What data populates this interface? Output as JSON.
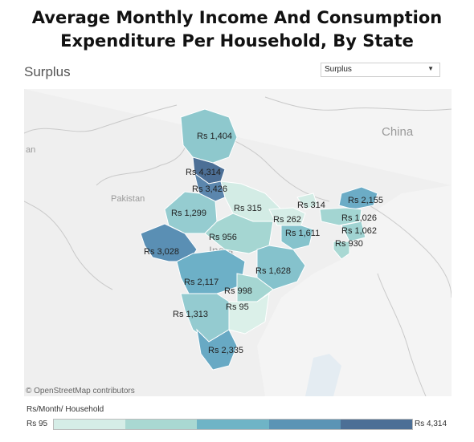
{
  "title_line1": "Average Monthly Income And Consumption",
  "title_line2": "Expenditure Per Household, By State",
  "subtitle": "Surplus",
  "dropdown": {
    "selected": "Surplus",
    "icon": "chevron-down-icon"
  },
  "map": {
    "country_labels": {
      "china": "China",
      "pakistan": "Pakistan",
      "india": "India",
      "cut_off": "an"
    },
    "attribution": "© OpenStreetMap contributors"
  },
  "legend": {
    "title": "Rs/Month/ Household",
    "min": "Rs 95",
    "max": "Rs 4,314",
    "colors": [
      "#d5ede7",
      "#a9d8d2",
      "#6fb4c6",
      "#5b94b5",
      "#4c6f96"
    ]
  },
  "states": [
    {
      "label": "Rs 1,404",
      "value": 1404,
      "color": "#8ec8cd"
    },
    {
      "label": "Rs 4,314",
      "value": 4314,
      "color": "#4c6f96"
    },
    {
      "label": "Rs 3,426",
      "value": 3426,
      "color": "#5b86ad"
    },
    {
      "label": "Rs 1,299",
      "value": 1299,
      "color": "#95ccd0"
    },
    {
      "label": "Rs 315",
      "value": 315,
      "color": "#d3ece5"
    },
    {
      "label": "Rs 314",
      "value": 314,
      "color": "#d3ece5"
    },
    {
      "label": "Rs 2,155",
      "value": 2155,
      "color": "#6cacc6"
    },
    {
      "label": "Rs 262",
      "value": 262,
      "color": "#d6ede7"
    },
    {
      "label": "Rs 1,026",
      "value": 1026,
      "color": "#a3d5d2"
    },
    {
      "label": "Rs 956",
      "value": 956,
      "color": "#a5d6d2"
    },
    {
      "label": "Rs 1,611",
      "value": 1611,
      "color": "#86c3cc"
    },
    {
      "label": "Rs 1,062",
      "value": 1062,
      "color": "#a0d3d2"
    },
    {
      "label": "Rs 930",
      "value": 930,
      "color": "#a9d8d3"
    },
    {
      "label": "Rs 3,028",
      "value": 3028,
      "color": "#5a8fb4"
    },
    {
      "label": "Rs 1,628",
      "value": 1628,
      "color": "#85c2cc"
    },
    {
      "label": "Rs 2,117",
      "value": 2117,
      "color": "#6db0c7"
    },
    {
      "label": "Rs 998",
      "value": 998,
      "color": "#a5d6d2"
    },
    {
      "label": "Rs 95",
      "value": 95,
      "color": "#dbf0e9"
    },
    {
      "label": "Rs 1,313",
      "value": 1313,
      "color": "#94cbd0"
    },
    {
      "label": "Rs 2,335",
      "value": 2335,
      "color": "#68a9c4"
    }
  ]
}
